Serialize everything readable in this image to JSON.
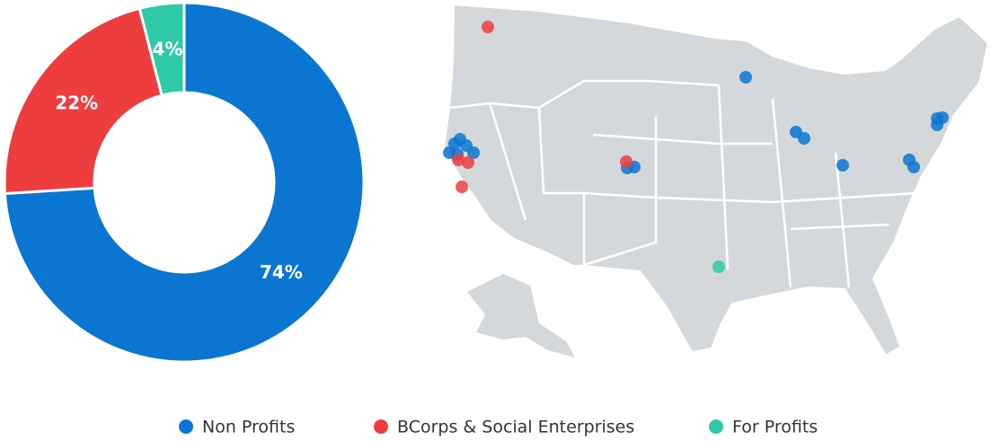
{
  "chart_data": {
    "type": "pie",
    "donut": true,
    "categories": [
      "Non Profits",
      "BCorps & Social Enterprises",
      "For Profits"
    ],
    "values": [
      74,
      22,
      4
    ],
    "value_labels": [
      "74%",
      "22%",
      "4%"
    ],
    "colors": [
      "#0a76d2",
      "#ee3d3f",
      "#2ec9a7"
    ]
  }
}
